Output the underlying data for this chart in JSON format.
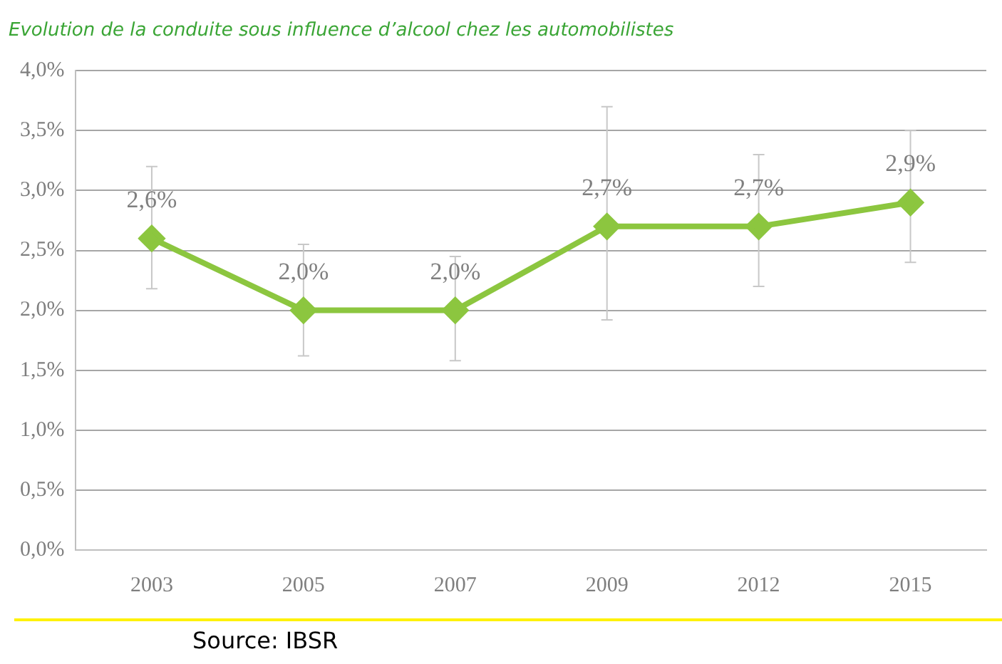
{
  "chart_data": {
    "type": "line",
    "title": "Evolution de la conduite sous influence d’alcool chez les automobilistes",
    "categories": [
      "2003",
      "2005",
      "2007",
      "2009",
      "2012",
      "2015"
    ],
    "series": [
      {
        "color": "#8cc63f",
        "values": [
          2.6,
          2.0,
          2.0,
          2.7,
          2.7,
          2.9
        ],
        "errors": [
          [
            2.18,
            3.2
          ],
          [
            1.62,
            2.55
          ],
          [
            1.58,
            2.45
          ],
          [
            1.92,
            3.7
          ],
          [
            2.2,
            3.3
          ],
          [
            2.4,
            3.5
          ]
        ]
      }
    ],
    "ylim": [
      0,
      4
    ],
    "yticks": [
      {
        "value": 0,
        "label": "0,0%"
      },
      {
        "value": 0.5,
        "label": "0,5%"
      },
      {
        "value": 1,
        "label": "1,0%"
      },
      {
        "value": 1.5,
        "label": "1,5%"
      },
      {
        "value": 2,
        "label": "2,0%"
      },
      {
        "value": 2.5,
        "label": "2,5%"
      },
      {
        "value": 3,
        "label": "3,0%"
      },
      {
        "value": 3.5,
        "label": "3,5%"
      },
      {
        "value": 4,
        "label": "4,0%"
      }
    ],
    "value_labels": [
      "2,6%",
      "2,0%",
      "2,0%",
      "2,7%",
      "2,7%",
      "2,9%"
    ],
    "grid": "y",
    "legend": false,
    "marker": "diamond",
    "line_style": "solid",
    "annotations": [
      "Source: IBSR"
    ]
  }
}
